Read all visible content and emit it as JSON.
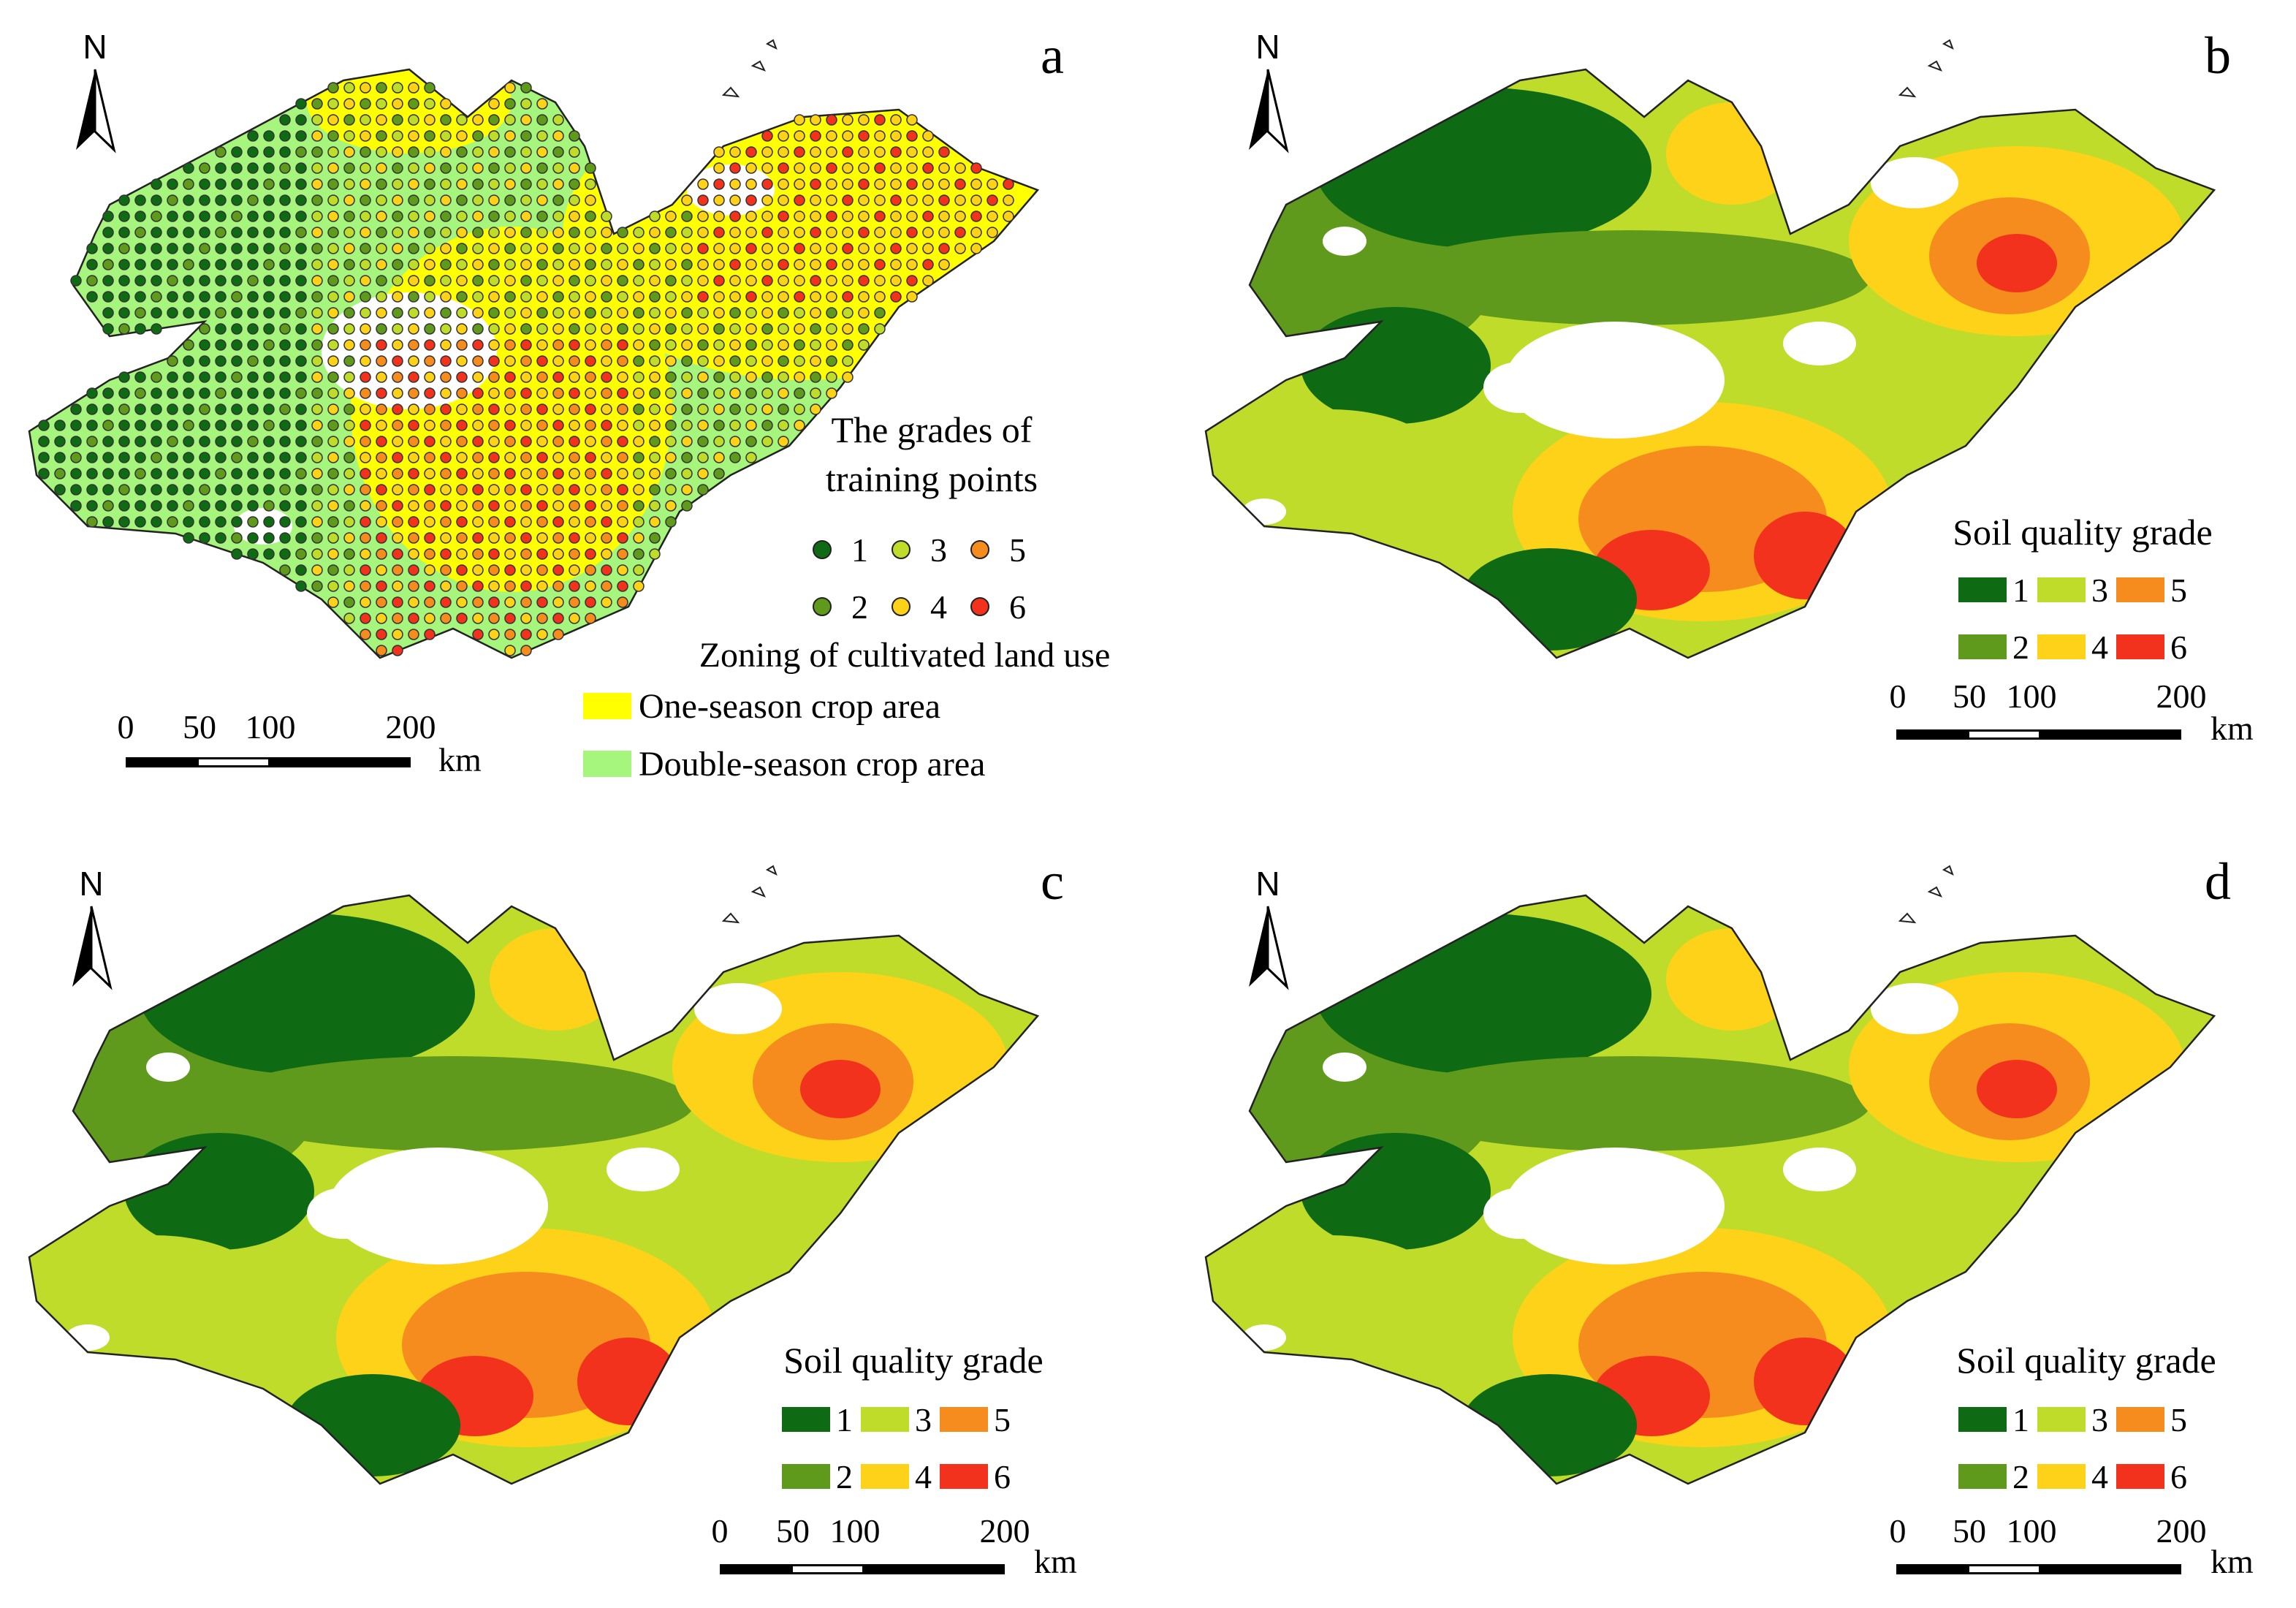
{
  "figure": {
    "colors": {
      "grade_1": "#0f6a14",
      "grade_2": "#5f9a1c",
      "grade_3": "#c0dc2a",
      "grade_4": "#ffd21a",
      "grade_5": "#f78c1e",
      "grade_6": "#f2321c",
      "one_season": "#ffff00",
      "double_season": "#a6f57c",
      "outline": "#222222"
    },
    "north_label": "N",
    "scale": {
      "ticks": [
        "0",
        "50",
        "100",
        "200"
      ],
      "unit": "km"
    },
    "panels": [
      {
        "letter": "a",
        "kind": "training",
        "legend_title_line1": "The grades of",
        "legend_title_line2": "training points",
        "grades": [
          "1",
          "2",
          "3",
          "4",
          "5",
          "6"
        ],
        "zoning_title": "Zoning of cultivated land use",
        "zone_one": "One-season crop area",
        "zone_double": "Double-season crop area"
      },
      {
        "letter": "b",
        "kind": "grade",
        "legend_title": "Soil quality grade",
        "grades": [
          "1",
          "2",
          "3",
          "4",
          "5",
          "6"
        ]
      },
      {
        "letter": "c",
        "kind": "grade",
        "legend_title": "Soil quality grade",
        "grades": [
          "1",
          "2",
          "3",
          "4",
          "5",
          "6"
        ]
      },
      {
        "letter": "d",
        "kind": "grade",
        "legend_title": "Soil quality grade",
        "grades": [
          "1",
          "2",
          "3",
          "4",
          "5",
          "6"
        ]
      }
    ]
  }
}
